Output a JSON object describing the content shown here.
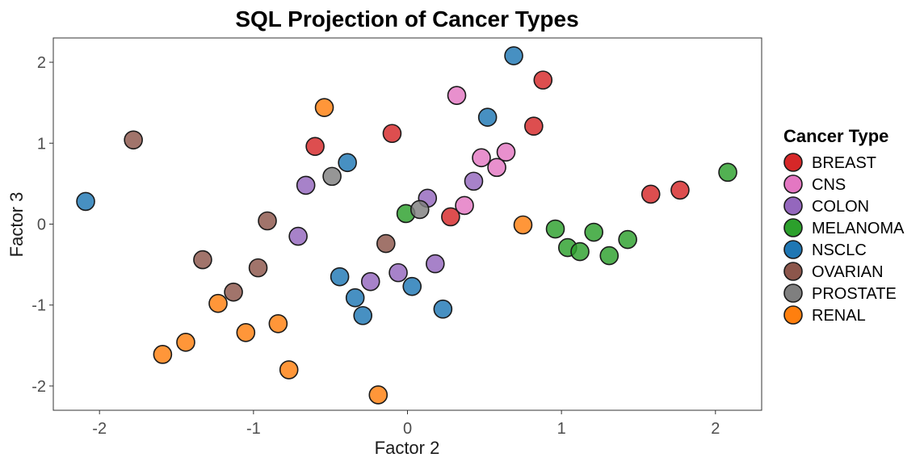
{
  "chart_data": {
    "type": "scatter",
    "title": "SQL Projection of Cancer Types",
    "xlabel": "Factor 2",
    "ylabel": "Factor 3",
    "xlim": [
      -2.3,
      2.3
    ],
    "ylim": [
      -2.3,
      2.3
    ],
    "xticks": [
      -2,
      -1,
      0,
      1,
      2
    ],
    "yticks": [
      -2,
      -1,
      0,
      1,
      2
    ],
    "grid": false,
    "legend": {
      "title": "Cancer Type",
      "position": "right"
    },
    "series": [
      {
        "name": "BREAST",
        "color": "#d62728",
        "points": [
          [
            0.88,
            1.78
          ],
          [
            0.82,
            1.21
          ],
          [
            -0.6,
            0.96
          ],
          [
            -0.1,
            1.12
          ],
          [
            0.28,
            0.09
          ],
          [
            1.58,
            0.37
          ],
          [
            1.77,
            0.42
          ]
        ]
      },
      {
        "name": "CNS",
        "color": "#e377c2",
        "points": [
          [
            0.32,
            1.59
          ],
          [
            0.48,
            0.82
          ],
          [
            0.58,
            0.7
          ],
          [
            0.64,
            0.89
          ],
          [
            0.37,
            0.23
          ]
        ]
      },
      {
        "name": "COLON",
        "color": "#9467bd",
        "points": [
          [
            -0.66,
            0.48
          ],
          [
            -0.71,
            -0.15
          ],
          [
            0.13,
            0.32
          ],
          [
            0.43,
            0.53
          ],
          [
            -0.06,
            -0.6
          ],
          [
            -0.24,
            -0.71
          ],
          [
            0.18,
            -0.49
          ]
        ]
      },
      {
        "name": "MELANOMA",
        "color": "#2ca02c",
        "points": [
          [
            -0.01,
            0.13
          ],
          [
            0.96,
            -0.06
          ],
          [
            1.04,
            -0.29
          ],
          [
            1.12,
            -0.34
          ],
          [
            1.21,
            -0.1
          ],
          [
            1.31,
            -0.39
          ],
          [
            1.43,
            -0.19
          ],
          [
            2.08,
            0.64
          ]
        ]
      },
      {
        "name": "NSCLC",
        "color": "#1f77b4",
        "points": [
          [
            0.69,
            2.08
          ],
          [
            0.52,
            1.32
          ],
          [
            -0.39,
            0.76
          ],
          [
            -2.09,
            0.28
          ],
          [
            -0.44,
            -0.65
          ],
          [
            -0.34,
            -0.91
          ],
          [
            -0.29,
            -1.13
          ],
          [
            0.03,
            -0.77
          ],
          [
            0.23,
            -1.05
          ]
        ]
      },
      {
        "name": "OVARIAN",
        "color": "#8c564b",
        "points": [
          [
            -1.78,
            1.04
          ],
          [
            -0.91,
            0.04
          ],
          [
            -1.33,
            -0.44
          ],
          [
            -0.97,
            -0.54
          ],
          [
            -1.13,
            -0.84
          ],
          [
            -0.14,
            -0.24
          ]
        ]
      },
      {
        "name": "PROSTATE",
        "color": "#7f7f7f",
        "points": [
          [
            -0.49,
            0.59
          ],
          [
            0.08,
            0.18
          ]
        ]
      },
      {
        "name": "RENAL",
        "color": "#ff7f0e",
        "points": [
          [
            -0.54,
            1.44
          ],
          [
            0.75,
            -0.01
          ],
          [
            -1.23,
            -0.98
          ],
          [
            -1.05,
            -1.34
          ],
          [
            -0.84,
            -1.23
          ],
          [
            -0.77,
            -1.8
          ],
          [
            -1.44,
            -1.46
          ],
          [
            -1.59,
            -1.61
          ],
          [
            -0.19,
            -2.11
          ]
        ]
      }
    ]
  }
}
